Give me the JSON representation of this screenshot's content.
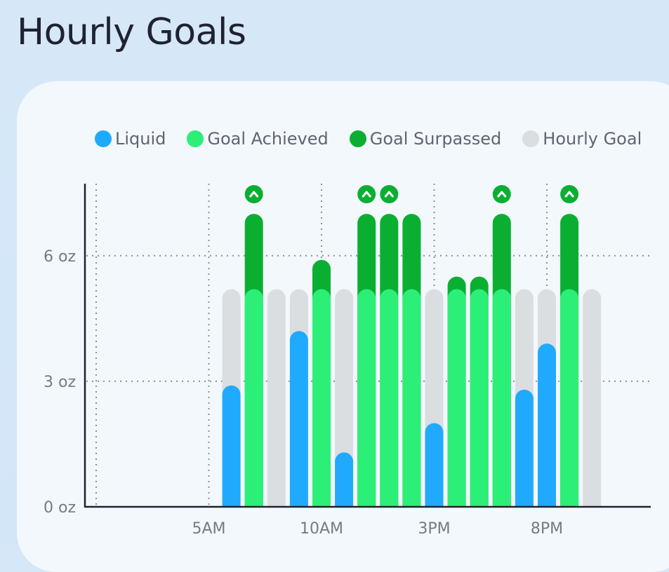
{
  "title": "Hourly Goals",
  "legend": [
    {
      "label": "Liquid",
      "color": "#20aafd"
    },
    {
      "label": "Goal Achieved",
      "color": "#2cef78"
    },
    {
      "label": "Goal Surpassed",
      "color": "#0aaf32"
    },
    {
      "label": "Hourly Goal",
      "color": "#dadee1"
    }
  ],
  "colors": {
    "liquid": "#20aafd",
    "achieved": "#2cef78",
    "surpassed": "#0aaf32",
    "goal": "#dadee1",
    "axis": "#1f2230",
    "grid": "#8c9096"
  },
  "surpassed_marker_icon": "chevron-up-icon",
  "chart_data": {
    "type": "bar",
    "stacked": true,
    "hourly_goal": 5.2,
    "units": "oz",
    "ylim": [
      0,
      7.5
    ],
    "yticks": [
      {
        "value": 0,
        "label": "0 oz"
      },
      {
        "value": 3,
        "label": "3 oz"
      },
      {
        "value": 6,
        "label": "6 oz"
      }
    ],
    "xticks": [
      {
        "hour": 5,
        "label": "5AM"
      },
      {
        "hour": 10,
        "label": "10AM"
      },
      {
        "hour": 15,
        "label": "3PM"
      },
      {
        "hour": 20,
        "label": "8PM"
      }
    ],
    "vertical_grid_hours": [
      0,
      5,
      10,
      15,
      20
    ],
    "xlim": [
      -0.5,
      25.5
    ],
    "series_names": [
      "Liquid",
      "Goal Achieved",
      "Goal Surpassed",
      "Hourly Goal"
    ],
    "bars": [
      {
        "hour": 6,
        "liquid": 2.9
      },
      {
        "hour": 7,
        "liquid": 7.0
      },
      {
        "hour": 8,
        "liquid": 0
      },
      {
        "hour": 9,
        "liquid": 4.2
      },
      {
        "hour": 10,
        "liquid": 5.9
      },
      {
        "hour": 11,
        "liquid": 1.3
      },
      {
        "hour": 12,
        "liquid": 7.0
      },
      {
        "hour": 13,
        "liquid": 7.0
      },
      {
        "hour": 14,
        "liquid": 7.0
      },
      {
        "hour": 15,
        "liquid": 2.0
      },
      {
        "hour": 16,
        "liquid": 5.5
      },
      {
        "hour": 17,
        "liquid": 5.5
      },
      {
        "hour": 18,
        "liquid": 7.0
      },
      {
        "hour": 19,
        "liquid": 2.8
      },
      {
        "hour": 20,
        "liquid": 3.9
      },
      {
        "hour": 21,
        "liquid": 7.0
      },
      {
        "hour": 22,
        "liquid": 0
      }
    ],
    "surpassed_markers_hours": [
      7,
      12,
      13,
      18,
      21
    ]
  }
}
